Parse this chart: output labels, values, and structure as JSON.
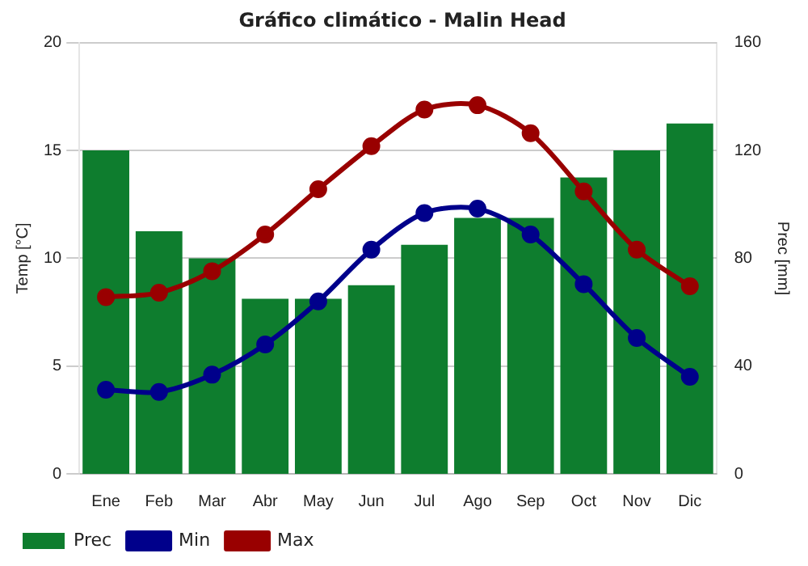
{
  "chart_data": {
    "type": "line",
    "title": "Gráfico climático - Malin Head",
    "ylabel": "Temp [°C]",
    "y2label": "Prec [mm]",
    "categories": [
      "Ene",
      "Feb",
      "Mar",
      "Abr",
      "May",
      "Jun",
      "Jul",
      "Ago",
      "Sep",
      "Oct",
      "Nov",
      "Dic"
    ],
    "series": [
      {
        "name": "Prec",
        "type": "bar",
        "axis": "y2",
        "color": "#0e7d2e",
        "values": [
          120,
          90,
          80,
          65,
          65,
          70,
          85,
          95,
          95,
          110,
          120,
          130
        ]
      },
      {
        "name": "Min",
        "color": "#00008b",
        "values": [
          3.9,
          3.8,
          4.6,
          6.0,
          8.0,
          10.4,
          12.1,
          12.3,
          11.1,
          8.8,
          6.3,
          4.5
        ]
      },
      {
        "name": "Max",
        "color": "#990000",
        "values": [
          8.2,
          8.4,
          9.4,
          11.1,
          13.2,
          15.2,
          16.9,
          17.1,
          15.8,
          13.1,
          10.4,
          8.7
        ]
      }
    ],
    "ylim": [
      0,
      20
    ],
    "yticks": [
      0,
      5,
      10,
      15,
      20
    ],
    "y2lim": [
      0,
      160
    ],
    "y2ticks": [
      0,
      40,
      80,
      120,
      160
    ],
    "grid": "y",
    "legend": "bottom left",
    "marker": "circle",
    "line_style": "solid"
  }
}
